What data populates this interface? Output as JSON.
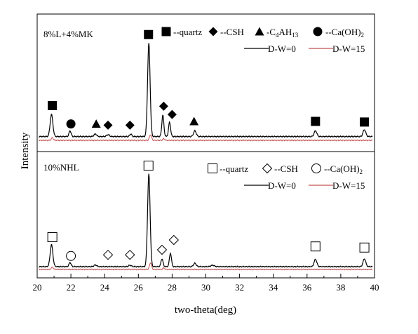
{
  "chart_data": {
    "type": "line",
    "xlabel": "two-theta(deg)",
    "ylabel": "Intensity",
    "xlim": [
      20,
      40
    ],
    "xticks": [
      20,
      22,
      24,
      26,
      28,
      30,
      32,
      34,
      36,
      38,
      40
    ],
    "colors": {
      "dw0": "#000000",
      "dw15": "#c0504d"
    },
    "panels": [
      {
        "title": "8%L+4%MK",
        "legend_markers": [
          {
            "shape": "square-filled",
            "label": "--quartz"
          },
          {
            "shape": "diamond-filled",
            "label": "--CSH"
          },
          {
            "shape": "triangle-filled",
            "label": "-C",
            "sub1": "4",
            "mid": "AH",
            "sub2": "13"
          },
          {
            "shape": "circle-filled",
            "label": "--Ca(OH)",
            "sub1": "2"
          }
        ],
        "series": [
          {
            "name": "D-W=0",
            "baseline": 12,
            "peaks": [
              [
                20.85,
                70,
                0.08
              ],
              [
                21.95,
                18,
                0.06
              ],
              [
                23.45,
                8,
                0.08
              ],
              [
                24.2,
                6,
                0.08
              ],
              [
                25.55,
                8,
                0.06
              ],
              [
                26.62,
                295,
                0.075
              ],
              [
                27.45,
                68,
                0.06
              ],
              [
                27.85,
                45,
                0.06
              ],
              [
                29.35,
                18,
                0.08
              ],
              [
                36.5,
                18,
                0.08
              ],
              [
                39.4,
                22,
                0.08
              ]
            ]
          },
          {
            "name": "D-W=15",
            "baseline": 0,
            "peaks": [
              [
                20.9,
                8,
                0.06
              ],
              [
                26.72,
                18,
                0.06
              ],
              [
                27.5,
                5,
                0.06
              ]
            ]
          }
        ],
        "annotations": [
          {
            "shape": "square-filled",
            "x": 20.9,
            "y": 110
          },
          {
            "shape": "circle-filled",
            "x": 22.0,
            "y": 52
          },
          {
            "shape": "triangle-filled",
            "x": 23.5,
            "y": 52
          },
          {
            "shape": "diamond-filled",
            "x": 24.2,
            "y": 48
          },
          {
            "shape": "diamond-filled",
            "x": 25.5,
            "y": 48
          },
          {
            "shape": "square-filled",
            "x": 26.6,
            "y": 335
          },
          {
            "shape": "diamond-filled",
            "x": 27.5,
            "y": 108
          },
          {
            "shape": "diamond-filled",
            "x": 28.0,
            "y": 82
          },
          {
            "shape": "triangle-filled",
            "x": 29.3,
            "y": 60
          },
          {
            "shape": "square-filled",
            "x": 36.5,
            "y": 60
          },
          {
            "shape": "square-filled",
            "x": 39.4,
            "y": 58
          }
        ]
      },
      {
        "title": "10%NHL",
        "legend_markers": [
          {
            "shape": "square-open",
            "label": "--quartz"
          },
          {
            "shape": "diamond-open",
            "label": "--CSH"
          },
          {
            "shape": "circle-open",
            "label": "--Ca(OH)",
            "sub1": "2"
          }
        ],
        "series": [
          {
            "name": "D-W=0",
            "baseline": 10,
            "peaks": [
              [
                20.85,
                78,
                0.08
              ],
              [
                21.95,
                15,
                0.06
              ],
              [
                23.45,
                6,
                0.08
              ],
              [
                25.5,
                5,
                0.08
              ],
              [
                26.62,
                330,
                0.075
              ],
              [
                27.4,
                28,
                0.06
              ],
              [
                27.9,
                48,
                0.06
              ],
              [
                29.35,
                12,
                0.08
              ],
              [
                30.4,
                5,
                0.1
              ],
              [
                36.5,
                26,
                0.08
              ],
              [
                39.4,
                28,
                0.08
              ]
            ]
          },
          {
            "name": "D-W=15",
            "baseline": 0,
            "peaks": [
              [
                20.9,
                8,
                0.06
              ],
              [
                26.72,
                24,
                0.06
              ],
              [
                27.5,
                5,
                0.06
              ]
            ]
          }
        ],
        "annotations": [
          {
            "shape": "square-open",
            "x": 20.9,
            "y": 115
          },
          {
            "shape": "circle-open",
            "x": 22.0,
            "y": 48
          },
          {
            "shape": "diamond-open",
            "x": 24.2,
            "y": 52
          },
          {
            "shape": "diamond-open",
            "x": 25.5,
            "y": 52
          },
          {
            "shape": "square-open",
            "x": 26.6,
            "y": 370
          },
          {
            "shape": "diamond-open",
            "x": 27.4,
            "y": 70
          },
          {
            "shape": "diamond-open",
            "x": 28.1,
            "y": 105
          },
          {
            "shape": "square-open",
            "x": 36.5,
            "y": 82
          },
          {
            "shape": "square-open",
            "x": 39.4,
            "y": 78
          }
        ]
      }
    ]
  }
}
